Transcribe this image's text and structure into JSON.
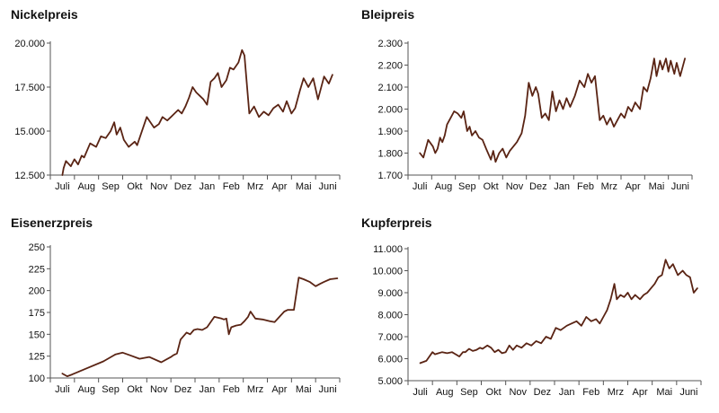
{
  "colors": {
    "line": "#5a2414",
    "axis": "#555555",
    "text": "#111111"
  },
  "chart_data": [
    {
      "type": "line",
      "title": "Nickelpreis",
      "xlabel": "",
      "ylabel": "",
      "grid": false,
      "legend": "none",
      "x_ticks": [
        "Juli",
        "Aug",
        "Sep",
        "Okt",
        "Nov",
        "Dez",
        "Jan",
        "Feb",
        "Mrz",
        "Apr",
        "Mai",
        "Juni"
      ],
      "ylim": [
        12500,
        20000
      ],
      "y_ticks": [
        12500,
        15000,
        17500,
        20000
      ],
      "y_tick_labels": [
        "12.500",
        "15.000",
        "17.500",
        "20.000"
      ],
      "x": [
        0.0,
        0.05,
        0.15,
        0.35,
        0.5,
        0.65,
        0.8,
        0.9,
        1.15,
        1.4,
        1.6,
        1.8,
        2.0,
        2.15,
        2.25,
        2.4,
        2.55,
        2.75,
        3.0,
        3.1,
        3.25,
        3.5,
        3.8,
        4.0,
        4.15,
        4.35,
        4.5,
        4.65,
        4.8,
        4.95,
        5.1,
        5.25,
        5.4,
        5.55,
        5.7,
        5.85,
        6.0,
        6.15,
        6.3,
        6.45,
        6.6,
        6.8,
        6.95,
        7.1,
        7.3,
        7.45,
        7.55,
        7.75,
        7.95,
        8.15,
        8.35,
        8.55,
        8.75,
        8.95,
        9.15,
        9.3,
        9.5,
        9.65,
        9.85,
        10.0,
        10.2,
        10.4,
        10.6,
        10.85,
        11.05,
        11.2
      ],
      "y": [
        12500,
        12900,
        13300,
        13000,
        13400,
        13100,
        13600,
        13500,
        14300,
        14100,
        14700,
        14600,
        15000,
        15500,
        14800,
        15200,
        14500,
        14100,
        14400,
        14200,
        14800,
        15800,
        15200,
        15400,
        15800,
        15600,
        15800,
        16000,
        16200,
        16000,
        16400,
        16900,
        17500,
        17200,
        17000,
        16800,
        16500,
        17800,
        18000,
        18300,
        17500,
        17900,
        18600,
        18500,
        18900,
        19600,
        19300,
        16000,
        16400,
        15800,
        16100,
        15900,
        16300,
        16500,
        16100,
        16700,
        16000,
        16300,
        17300,
        18000,
        17500,
        18000,
        16800,
        18100,
        17700,
        18200
      ]
    },
    {
      "type": "line",
      "title": "Bleipreis",
      "xlabel": "",
      "ylabel": "",
      "grid": false,
      "legend": "none",
      "x_ticks": [
        "Juli",
        "Aug",
        "Sep",
        "Okt",
        "Nov",
        "Dez",
        "Jan",
        "Feb",
        "Mrz",
        "Apr",
        "Mai",
        "Juni"
      ],
      "ylim": [
        1700,
        2300
      ],
      "y_ticks": [
        1700,
        1800,
        1900,
        2000,
        2100,
        2200,
        2300
      ],
      "y_tick_labels": [
        "1.700",
        "1.800",
        "1.900",
        "2.000",
        "2.100",
        "2.200",
        "2.300"
      ],
      "x": [
        0.0,
        0.15,
        0.35,
        0.55,
        0.65,
        0.75,
        0.85,
        0.95,
        1.05,
        1.15,
        1.3,
        1.45,
        1.6,
        1.75,
        1.85,
        2.0,
        2.1,
        2.2,
        2.35,
        2.5,
        2.65,
        2.8,
        3.0,
        3.1,
        3.2,
        3.35,
        3.5,
        3.65,
        3.8,
        4.1,
        4.3,
        4.45,
        4.6,
        4.75,
        4.9,
        5.0,
        5.15,
        5.3,
        5.45,
        5.6,
        5.75,
        5.9,
        6.05,
        6.2,
        6.35,
        6.55,
        6.75,
        6.95,
        7.1,
        7.25,
        7.4,
        7.6,
        7.75,
        7.9,
        8.05,
        8.2,
        8.35,
        8.5,
        8.65,
        8.8,
        8.95,
        9.1,
        9.3,
        9.45,
        9.6,
        9.75,
        9.9,
        10.0,
        10.15,
        10.25,
        10.4,
        10.5,
        10.6,
        10.75,
        10.85,
        11.0,
        11.2
      ],
      "y": [
        1800,
        1780,
        1860,
        1830,
        1800,
        1820,
        1870,
        1850,
        1880,
        1930,
        1960,
        1990,
        1980,
        1960,
        1990,
        1900,
        1920,
        1880,
        1900,
        1870,
        1860,
        1820,
        1770,
        1810,
        1760,
        1800,
        1820,
        1780,
        1810,
        1850,
        1890,
        1970,
        2120,
        2060,
        2100,
        2070,
        1960,
        1980,
        1950,
        2080,
        1990,
        2040,
        2000,
        2050,
        2010,
        2060,
        2130,
        2100,
        2160,
        2120,
        2150,
        1950,
        1970,
        1930,
        1960,
        1920,
        1950,
        1980,
        1960,
        2010,
        1990,
        2030,
        2000,
        2100,
        2080,
        2140,
        2230,
        2150,
        2220,
        2180,
        2230,
        2170,
        2220,
        2160,
        2210,
        2150,
        2230
      ]
    },
    {
      "type": "line",
      "title": "Eisenerzpreis",
      "xlabel": "",
      "ylabel": "",
      "grid": false,
      "legend": "none",
      "x_ticks": [
        "Juli",
        "Aug",
        "Sep",
        "Okt",
        "Nov",
        "Dez",
        "Jan",
        "Feb",
        "Mrz",
        "Apr",
        "Mai",
        "Juni"
      ],
      "ylim": [
        100,
        250
      ],
      "y_ticks": [
        100,
        125,
        150,
        175,
        200,
        225,
        250
      ],
      "y_tick_labels": [
        "100",
        "125",
        "150",
        "175",
        "200",
        "225",
        "250"
      ],
      "x": [
        0.0,
        0.2,
        0.4,
        1.0,
        1.7,
        2.2,
        2.5,
        2.8,
        3.2,
        3.6,
        4.1,
        4.5,
        4.6,
        4.75,
        4.9,
        5.15,
        5.3,
        5.45,
        5.6,
        5.8,
        6.0,
        6.3,
        6.6,
        6.7,
        6.8,
        6.9,
        7.0,
        7.2,
        7.4,
        7.55,
        7.7,
        7.8,
        8.0,
        8.3,
        8.6,
        8.8,
        9.0,
        9.2,
        9.35,
        9.6,
        9.8,
        10.0,
        10.25,
        10.5,
        10.7,
        10.85,
        11.1,
        11.4
      ],
      "y": [
        105,
        102,
        104,
        111,
        119,
        127,
        129,
        126,
        122,
        124,
        118,
        124,
        126,
        128,
        144,
        152,
        150,
        155,
        156,
        155,
        158,
        170,
        168,
        167,
        168,
        150,
        158,
        160,
        161,
        165,
        170,
        176,
        168,
        167,
        165,
        164,
        170,
        176,
        178,
        178,
        215,
        213,
        210,
        205,
        208,
        210,
        213,
        214
      ]
    },
    {
      "type": "line",
      "title": "Kupferpreis",
      "xlabel": "",
      "ylabel": "",
      "grid": false,
      "legend": "none",
      "x_ticks": [
        "Juli",
        "Aug",
        "Sep",
        "Okt",
        "Nov",
        "Dez",
        "Jan",
        "Feb",
        "Mrz",
        "Apr",
        "Mai",
        "Juni"
      ],
      "ylim": [
        5000,
        11000
      ],
      "y_ticks": [
        5000,
        6000,
        7000,
        8000,
        9000,
        10000,
        11000
      ],
      "y_tick_labels": [
        "5.000",
        "6.000",
        "7.000",
        "8.000",
        "9.000",
        "10.000",
        "11.000"
      ],
      "x": [
        0.0,
        0.25,
        0.5,
        0.6,
        0.75,
        0.9,
        1.1,
        1.3,
        1.45,
        1.6,
        1.75,
        1.85,
        2.0,
        2.15,
        2.3,
        2.45,
        2.55,
        2.75,
        2.9,
        3.05,
        3.2,
        3.35,
        3.5,
        3.65,
        3.8,
        3.95,
        4.15,
        4.35,
        4.55,
        4.75,
        4.95,
        5.15,
        5.35,
        5.55,
        5.75,
        6.0,
        6.2,
        6.4,
        6.6,
        6.8,
        7.0,
        7.2,
        7.35,
        7.55,
        7.65,
        7.8,
        7.95,
        8.05,
        8.2,
        8.35,
        8.5,
        8.65,
        8.8,
        9.0,
        9.15,
        9.3,
        9.45,
        9.6,
        9.75,
        9.9,
        10.05,
        10.2,
        10.35,
        10.55,
        10.75,
        10.9,
        11.05,
        11.2,
        11.35
      ],
      "y": [
        5800,
        5900,
        6300,
        6200,
        6250,
        6300,
        6250,
        6300,
        6200,
        6100,
        6300,
        6300,
        6450,
        6350,
        6400,
        6500,
        6450,
        6600,
        6500,
        6300,
        6400,
        6250,
        6300,
        6600,
        6400,
        6600,
        6500,
        6700,
        6600,
        6800,
        6700,
        7000,
        6900,
        7400,
        7300,
        7500,
        7600,
        7700,
        7500,
        7900,
        7700,
        7800,
        7600,
        8000,
        8200,
        8700,
        9400,
        8700,
        8900,
        8800,
        9000,
        8700,
        8900,
        8700,
        8900,
        9000,
        9200,
        9400,
        9700,
        9800,
        10500,
        10100,
        10300,
        9800,
        10000,
        9800,
        9700,
        9000,
        9200
      ]
    }
  ]
}
